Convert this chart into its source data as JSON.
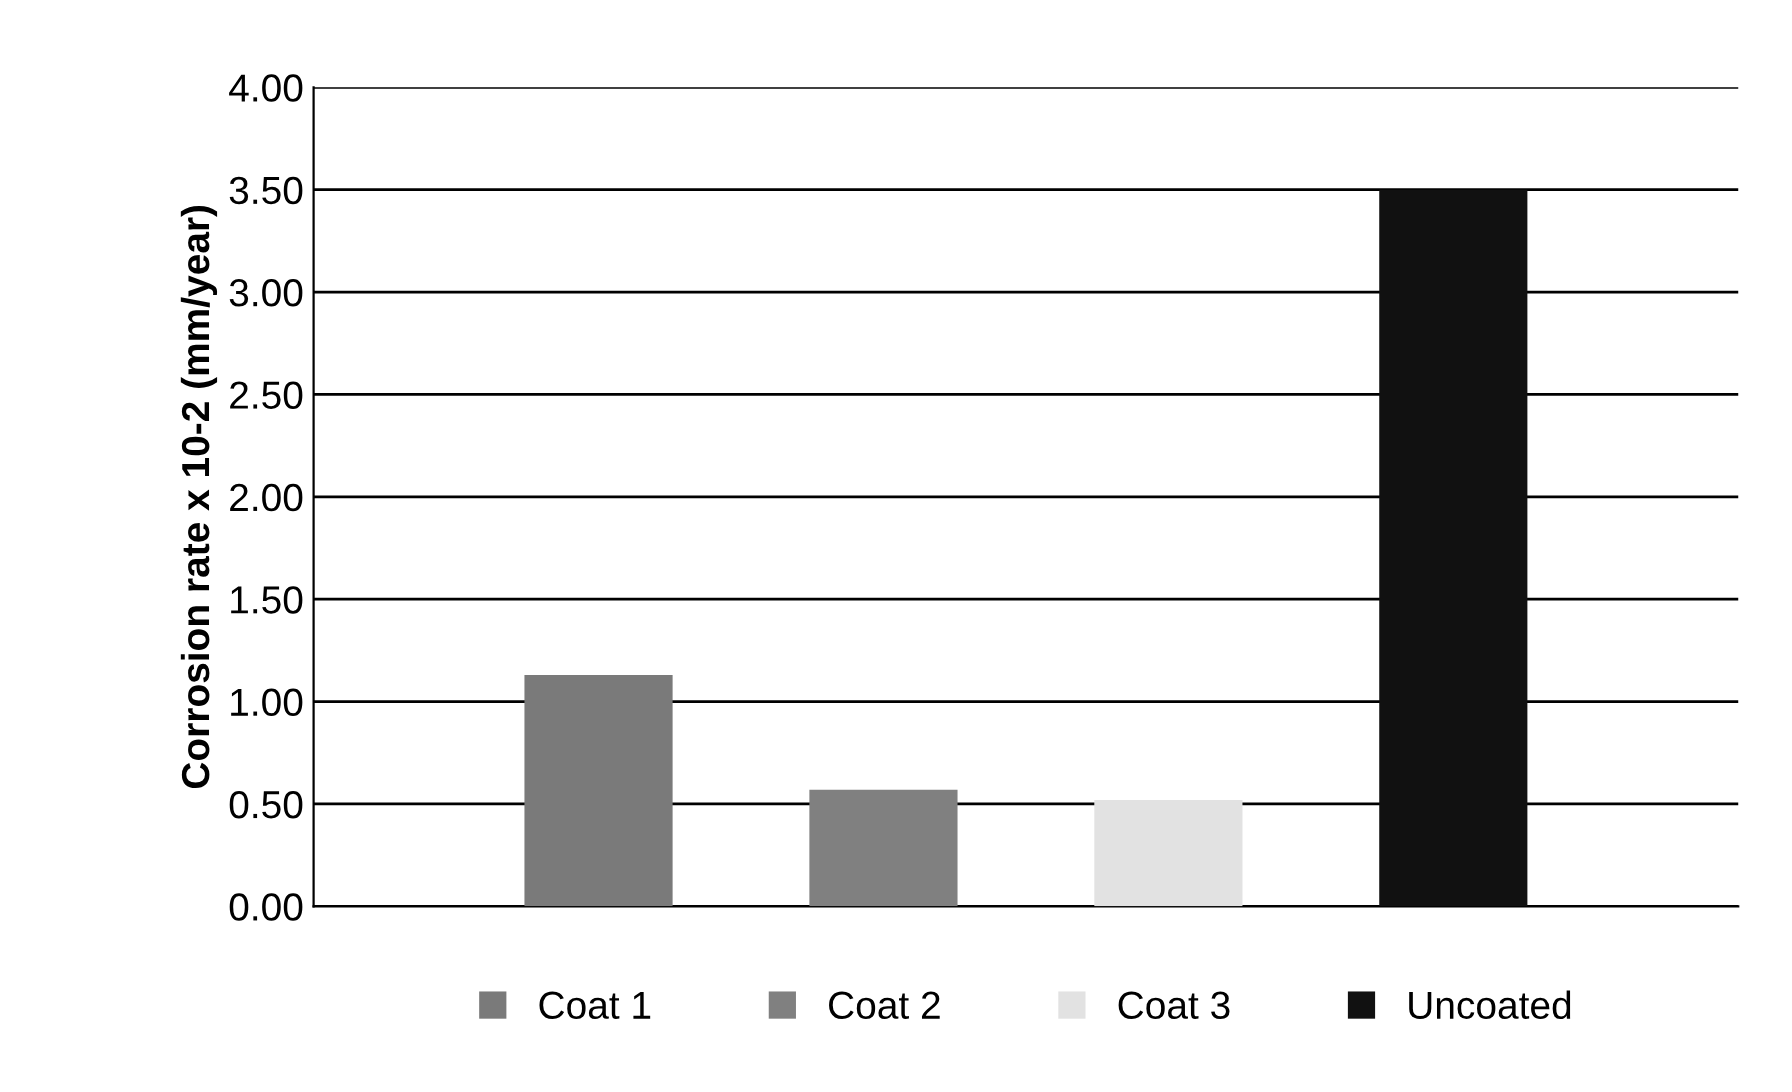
{
  "chart_data": {
    "type": "bar",
    "ylabel": "Corrosion rate x 10-2 (mm/year)",
    "categories": [
      null
    ],
    "series": [
      {
        "name": "Coat 1",
        "color": "#7a7a7a",
        "values": [
          1.13
        ]
      },
      {
        "name": "Coat 2",
        "color": "#808080",
        "values": [
          0.57
        ]
      },
      {
        "name": "Coat 3",
        "color": "#e2e2e2",
        "values": [
          0.52
        ]
      },
      {
        "name": "Uncoated",
        "color": "#111111",
        "values": [
          3.5
        ]
      }
    ],
    "ylim": [
      0,
      4
    ],
    "yticks": [
      {
        "value": 0,
        "label": "0.00"
      },
      {
        "value": 0.5,
        "label": "0.50"
      },
      {
        "value": 1,
        "label": "1.00"
      },
      {
        "value": 1.5,
        "label": "1.50"
      },
      {
        "value": 2,
        "label": "2.00"
      },
      {
        "value": 2.5,
        "label": "2.50"
      },
      {
        "value": 3,
        "label": "3.00"
      },
      {
        "value": 3.5,
        "label": "3.50"
      },
      {
        "value": 4,
        "label": "4.00"
      }
    ],
    "grid": "y",
    "legend": "bottom"
  }
}
